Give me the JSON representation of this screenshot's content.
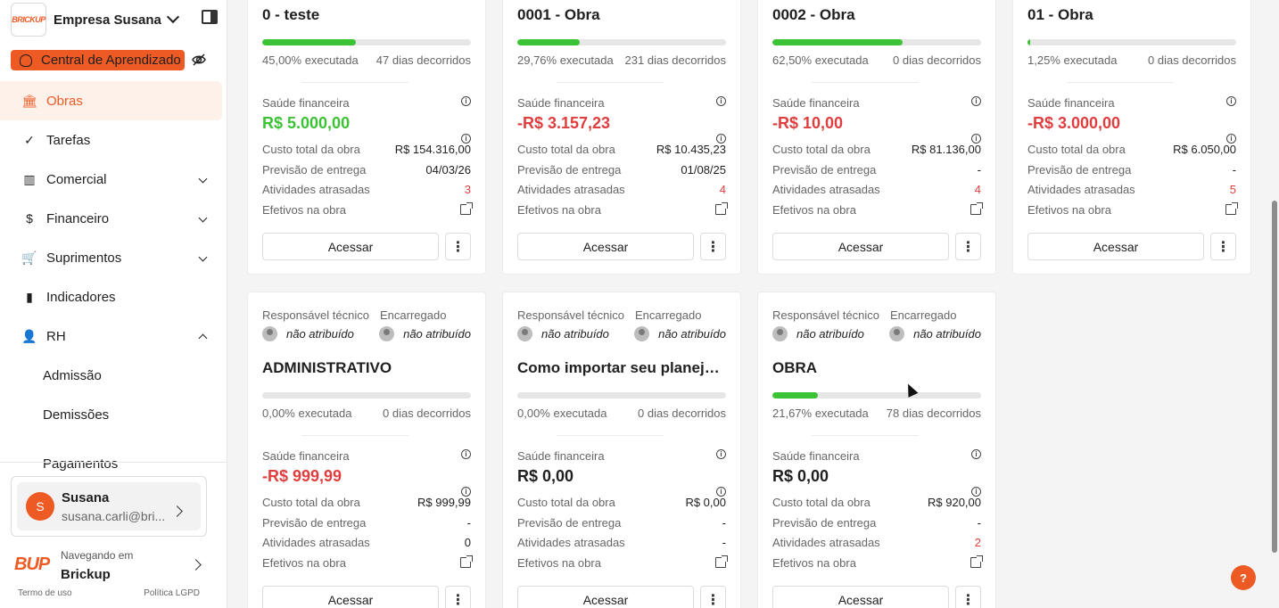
{
  "sidebar": {
    "logo_text": "BRICKUP",
    "company": "Empresa Susana",
    "learn_label": "Central de Aprendizado",
    "nav": [
      {
        "label": "Obras",
        "icon": "bank-icon",
        "glyph": "🏛"
      },
      {
        "label": "Tarefas",
        "icon": "check-circle-icon",
        "glyph": "✓"
      },
      {
        "label": "Comercial",
        "icon": "barcode-icon",
        "glyph": "▥"
      },
      {
        "label": "Financeiro",
        "icon": "dollar-circle-icon",
        "glyph": "$"
      },
      {
        "label": "Suprimentos",
        "icon": "cart-icon",
        "glyph": "🛒"
      },
      {
        "label": "Indicadores",
        "icon": "bar-chart-icon",
        "glyph": "▮"
      },
      {
        "label": "RH",
        "icon": "user-icon",
        "glyph": "👤"
      }
    ],
    "rh_sub": [
      "Admissão",
      "Demissões",
      "Pagamentos"
    ],
    "user": {
      "initial": "S",
      "name": "Susana",
      "email": "susana.carli@bri..."
    },
    "browse": {
      "logo": "BUP",
      "label": "Navegando em",
      "name": "Brickup"
    },
    "footer": {
      "terms": "Termo de uso",
      "privacy": "Política LGPD"
    }
  },
  "labels": {
    "health": "Saúde financeira",
    "cost": "Custo total da obra",
    "delivery": "Previsão de entrega",
    "late": "Atividades atrasadas",
    "staff": "Efetivos na obra",
    "access": "Acessar",
    "resp_tech": "Responsável técnico",
    "foreman": "Encarregado",
    "unassigned": "não atribuído",
    "more": "⋮"
  },
  "cards": [
    {
      "title": "0 - teste",
      "progress": 0.45,
      "executed": "45,00% executada",
      "days": "47 dias decorridos",
      "health": "R$ 5.000,00",
      "health_state": "pos",
      "cost": "R$ 154.316,00",
      "delivery": "04/03/26",
      "late": "3",
      "late_red": true,
      "has_resp": false
    },
    {
      "title": "0001 - Obra",
      "progress": 0.2976,
      "executed": "29,76% executada",
      "days": "231 dias decorridos",
      "health": "-R$ 3.157,23",
      "health_state": "neg",
      "cost": "R$ 10.435,23",
      "delivery": "01/08/25",
      "late": "4",
      "late_red": true,
      "has_resp": false
    },
    {
      "title": "0002 - Obra",
      "progress": 0.625,
      "executed": "62,50% executada",
      "days": "0 dias decorridos",
      "health": "-R$ 10,00",
      "health_state": "neg",
      "cost": "R$ 81.136,00",
      "delivery": "-",
      "late": "4",
      "late_red": true,
      "has_resp": false
    },
    {
      "title": "01 - Obra",
      "progress": 0.0125,
      "executed": "1,25% executada",
      "days": "0 dias decorridos",
      "health": "-R$ 3.000,00",
      "health_state": "neg",
      "cost": "R$ 6.050,00",
      "delivery": "-",
      "late": "5",
      "late_red": true,
      "has_resp": false
    },
    {
      "title": "ADMINISTRATIVO",
      "progress": 0.0,
      "executed": "0,00% executada",
      "days": "0 dias decorridos",
      "health": "-R$ 999,99",
      "health_state": "neg",
      "cost": "R$ 999,99",
      "delivery": "-",
      "late": "0",
      "late_red": false,
      "has_resp": true
    },
    {
      "title": "Como importar seu planejam...",
      "progress": 0.0,
      "executed": "0,00% executada",
      "days": "0 dias decorridos",
      "health": "R$ 0,00",
      "health_state": "neu",
      "cost": "R$ 0,00",
      "delivery": "-",
      "late": "-",
      "late_red": false,
      "has_resp": true
    },
    {
      "title": "OBRA",
      "progress": 0.2167,
      "executed": "21,67% executada",
      "days": "78 dias decorridos",
      "health": "R$ 0,00",
      "health_state": "neu",
      "cost": "R$ 920,00",
      "delivery": "-",
      "late": "2",
      "late_red": true,
      "has_resp": true
    }
  ],
  "help_glyph": "?"
}
